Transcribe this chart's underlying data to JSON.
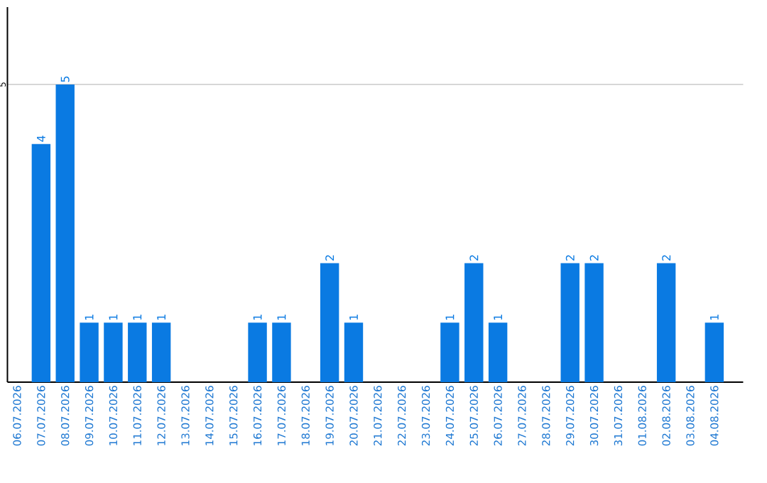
{
  "chart_data": {
    "type": "bar",
    "categories": [
      "06.07.2026",
      "07.07.2026",
      "08.07.2026",
      "09.07.2026",
      "10.07.2026",
      "11.07.2026",
      "12.07.2026",
      "13.07.2026",
      "14.07.2026",
      "15.07.2026",
      "16.07.2026",
      "17.07.2026",
      "18.07.2026",
      "19.07.2026",
      "20.07.2026",
      "21.07.2026",
      "22.07.2026",
      "23.07.2026",
      "24.07.2026",
      "25.07.2026",
      "26.07.2026",
      "27.07.2026",
      "28.07.2026",
      "29.07.2026",
      "30.07.2026",
      "31.07.2026",
      "01.08.2026",
      "02.08.2026",
      "03.08.2026",
      "04.08.2026"
    ],
    "values": [
      0,
      4,
      5,
      1,
      1,
      1,
      1,
      0,
      0,
      0,
      1,
      1,
      0,
      2,
      1,
      0,
      0,
      0,
      1,
      2,
      1,
      0,
      0,
      2,
      2,
      0,
      0,
      2,
      0,
      1
    ],
    "value_labels": [
      null,
      "4",
      "5",
      "1",
      "1",
      "1",
      "1",
      null,
      null,
      null,
      "1",
      "1",
      null,
      "2",
      "1",
      null,
      null,
      null,
      "1",
      "2",
      "1",
      null,
      null,
      "2",
      "2",
      null,
      null,
      "2",
      null,
      "1"
    ],
    "color": "#0a7ae2",
    "ylim": [
      0,
      6.3
    ],
    "yticks": [
      5
    ],
    "grid": "y"
  }
}
